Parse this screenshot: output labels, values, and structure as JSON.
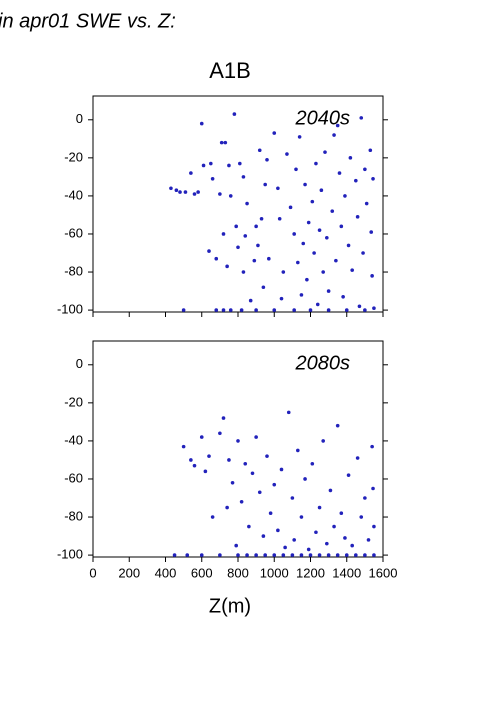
{
  "header": "in apr01 SWE vs. Z:",
  "chart_data": [
    {
      "type": "scatter",
      "title": "A1B",
      "annotation": "2040s",
      "color": "#2222bb",
      "xlim": [
        0,
        1600
      ],
      "xticks": [
        0,
        200,
        400,
        600,
        800,
        1000,
        1200,
        1400,
        1600
      ],
      "ylim": [
        -101,
        12.5
      ],
      "yticks": [
        -100,
        -80,
        -60,
        -40,
        -20,
        0
      ],
      "x": [
        430,
        460,
        480,
        510,
        540,
        560,
        580,
        600,
        610,
        640,
        650,
        660,
        680,
        700,
        710,
        720,
        730,
        740,
        750,
        760,
        780,
        790,
        800,
        810,
        820,
        830,
        830,
        840,
        850,
        870,
        890,
        900,
        910,
        920,
        930,
        940,
        950,
        960,
        970,
        1000,
        1020,
        1030,
        1040,
        1050,
        1070,
        1090,
        1110,
        1110,
        1120,
        1130,
        1140,
        1150,
        1160,
        1170,
        1180,
        1190,
        1210,
        1220,
        1230,
        1240,
        1250,
        1260,
        1270,
        1280,
        1290,
        1300,
        1320,
        1330,
        1340,
        1350,
        1360,
        1370,
        1380,
        1390,
        1410,
        1420,
        1430,
        1450,
        1460,
        1470,
        1480,
        1490,
        1500,
        1510,
        1530,
        1535,
        1540,
        1545,
        1550,
        500,
        680,
        720,
        760,
        900,
        1000,
        1200,
        1300,
        1400,
        1500
      ],
      "values": [
        -36,
        -37,
        -38,
        -38,
        -28,
        -39,
        -38,
        -2,
        -24,
        -69,
        -23,
        -31,
        -73,
        -39,
        -12,
        -60,
        -12,
        -77,
        -24,
        -40,
        3,
        -56,
        -67,
        -23,
        -100,
        -30,
        -80,
        -61,
        -44,
        -95,
        -74,
        -56,
        -66,
        -16,
        -52,
        -88,
        -34,
        -21,
        -73,
        -7,
        -36,
        -52,
        -94,
        -80,
        -18,
        -46,
        -60,
        -100,
        -26,
        -75,
        -9,
        -92,
        -65,
        -34,
        -84,
        -54,
        -43,
        -70,
        -23,
        -97,
        -58,
        -37,
        -80,
        -17,
        -62,
        -90,
        -48,
        -8,
        -74,
        -3,
        -28,
        -56,
        -93,
        -40,
        -66,
        -20,
        -79,
        -32,
        -51,
        -98,
        1,
        -70,
        -26,
        -44,
        -16,
        -59,
        -82,
        -31,
        -99,
        -100,
        -100,
        -100,
        -100,
        -100,
        -100,
        -100,
        -100,
        -100,
        -100
      ]
    },
    {
      "type": "scatter",
      "annotation": "2080s",
      "xlabel": "Z(m)",
      "color": "#2222bb",
      "xlim": [
        0,
        1600
      ],
      "xticks": [
        0,
        200,
        400,
        600,
        800,
        1000,
        1200,
        1400,
        1600
      ],
      "ylim": [
        -101,
        12.5
      ],
      "yticks": [
        -100,
        -80,
        -60,
        -40,
        -20,
        0
      ],
      "x": [
        500,
        540,
        560,
        600,
        620,
        640,
        660,
        700,
        720,
        740,
        750,
        770,
        790,
        800,
        820,
        840,
        860,
        880,
        900,
        920,
        940,
        960,
        980,
        1000,
        1020,
        1040,
        1060,
        1080,
        1100,
        1110,
        1130,
        1150,
        1170,
        1190,
        1210,
        1230,
        1250,
        1270,
        1290,
        1310,
        1330,
        1350,
        1370,
        1390,
        1410,
        1430,
        1460,
        1480,
        1500,
        1520,
        1540,
        1545,
        1550,
        450,
        520,
        600,
        700,
        800,
        850,
        900,
        950,
        1000,
        1050,
        1100,
        1150,
        1200,
        1250,
        1300,
        1350,
        1400,
        1450,
        1500,
        1550
      ],
      "values": [
        -43,
        -50,
        -53,
        -38,
        -56,
        -48,
        -80,
        -36,
        -28,
        -75,
        -50,
        -62,
        -95,
        -40,
        -72,
        -52,
        -85,
        -57,
        -38,
        -67,
        -90,
        -48,
        -78,
        -63,
        -87,
        -55,
        -96,
        -25,
        -70,
        -92,
        -45,
        -80,
        -60,
        -97,
        -52,
        -88,
        -75,
        -40,
        -94,
        -66,
        -85,
        -32,
        -78,
        -91,
        -58,
        -95,
        -49,
        -80,
        -70,
        -92,
        -43,
        -65,
        -85,
        -100,
        -100,
        -100,
        -100,
        -100,
        -100,
        -100,
        -100,
        -100,
        -100,
        -100,
        -100,
        -100,
        -100,
        -100,
        -100,
        -100,
        -100,
        -100,
        -100
      ]
    }
  ]
}
